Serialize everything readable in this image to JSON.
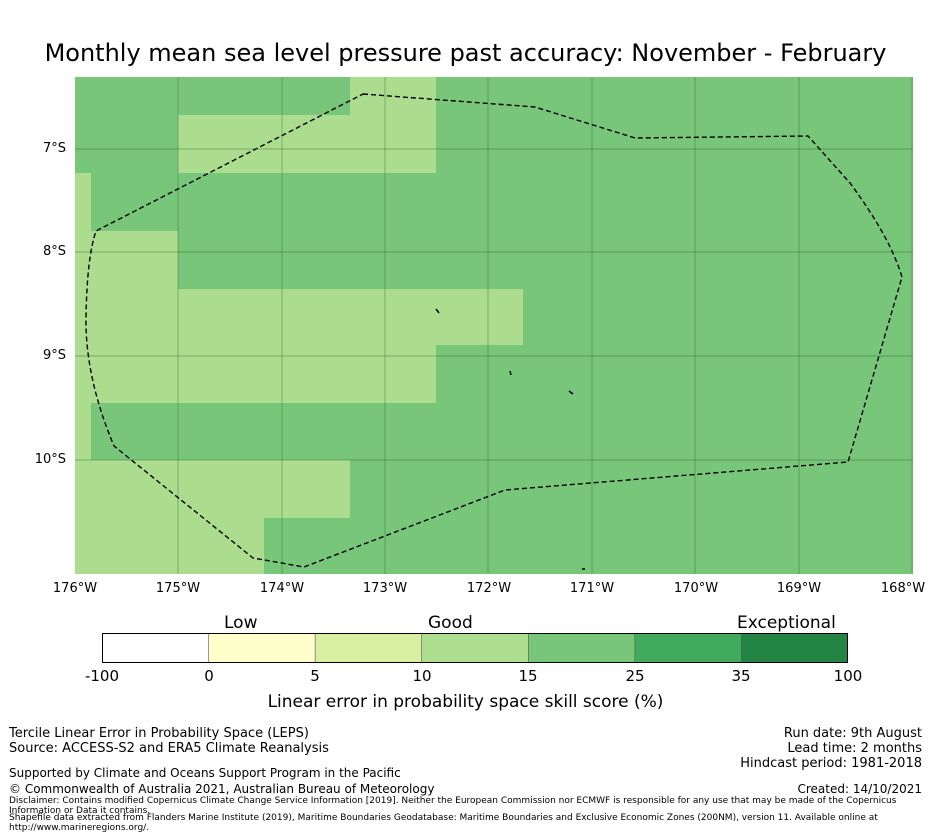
{
  "title": "Monthly mean sea level pressure past accuracy: November - February",
  "map": {
    "lat_labels": [
      "7°S",
      "8°S",
      "9°S",
      "10°S"
    ],
    "lon_labels": [
      "176°W",
      "175°W",
      "174°W",
      "173°W",
      "172°W",
      "171°W",
      "170°W",
      "169°W",
      "168°W"
    ],
    "colors": {
      "good": "#acdd8f",
      "better": "#78c679",
      "grid": "#2b5e2b"
    }
  },
  "colorbar": {
    "words": [
      "Low",
      "Good",
      "Exceptional"
    ],
    "ticks": [
      "-100",
      "0",
      "5",
      "10",
      "15",
      "25",
      "35",
      "100"
    ],
    "colors": [
      "#ffffff",
      "#ffffcc",
      "#d9f0a3",
      "#addd8e",
      "#78c679",
      "#41ab5d",
      "#238443"
    ],
    "label": "Linear error in probability space skill score (%)"
  },
  "footer": {
    "left": [
      "Tercile Linear Error in Probability Space (LEPS)",
      "Source: ACCESS-S2 and ERA5 Climate Reanalysis"
    ],
    "right": [
      "Run date: 9th August",
      "Lead time: 2 months",
      "Hindcast period: 1981-2018"
    ],
    "support": "Supported by Climate and Oceans Support Program in the Pacific",
    "copyright": "© Commonwealth of Australia 2021, Australian Bureau of Meteorology",
    "created": "Created: 14/10/2021",
    "disclaimer": "Disclaimer: Contains modified Copernicus Climate Change Service Information [2019]. Neither the European Commission nor ECMWF is responsible for any use that may be made of the Copernicus Information or Data it contains.",
    "shapefile": "Shapefile data extracted from Flanders Marine Institute (2019), Maritime Boundaries Geodatabase: Maritime Boundaries and Exclusive Economic Zones (200NM), version 11. Available online at http://www.marineregions.org/."
  }
}
